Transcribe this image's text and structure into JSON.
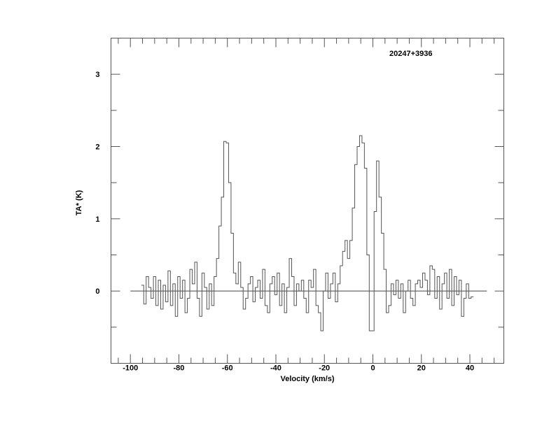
{
  "chart_data": {
    "type": "line",
    "style": "histogram-step",
    "title": "20247+3936",
    "xlabel": "Velocity (km/s)",
    "ylabel": "TA* (K)",
    "xlim": [
      -108,
      54
    ],
    "ylim": [
      -1.0,
      3.5
    ],
    "xticks": [
      -100,
      -80,
      -60,
      -40,
      -20,
      0,
      20,
      40
    ],
    "xtick_labels": [
      "-100",
      "-80",
      "-60",
      "-40",
      "-20",
      "0",
      "20",
      "40"
    ],
    "yticks": [
      0,
      1,
      2,
      3
    ],
    "ytick_labels": [
      "0",
      "1",
      "2",
      "3"
    ],
    "x_minor_step": 5,
    "y_minor_step": 0.5,
    "grid": false,
    "baseline": {
      "y": 0,
      "x_range": [
        -100,
        47
      ]
    },
    "line_color": "#555555",
    "series": [
      {
        "x": [
          -95,
          -94,
          -93,
          -92,
          -91,
          -90,
          -89,
          -88,
          -87,
          -86,
          -85,
          -84,
          -83,
          -82,
          -81,
          -80,
          -79,
          -78,
          -77,
          -76,
          -75,
          -74,
          -73,
          -72,
          -71,
          -70,
          -69,
          -68,
          -67,
          -66,
          -65,
          -64,
          -63,
          -62,
          -61,
          -60,
          -59,
          -58,
          -57,
          -56,
          -55,
          -54,
          -53,
          -52,
          -51,
          -50,
          -49,
          -48,
          -47,
          -46,
          -45,
          -44,
          -43,
          -42,
          -41,
          -40,
          -39,
          -38,
          -37,
          -36,
          -35,
          -34,
          -33,
          -32,
          -31,
          -30,
          -29,
          -28,
          -27,
          -26,
          -25,
          -24,
          -23,
          -22,
          -21,
          -20,
          -19,
          -18,
          -17,
          -16,
          -15,
          -14,
          -13,
          -12,
          -11,
          -10,
          -9,
          -8,
          -7,
          -6,
          -5,
          -4,
          -3,
          -2,
          -1,
          0,
          1,
          2,
          3,
          4,
          5,
          6,
          7,
          8,
          9,
          10,
          11,
          12,
          13,
          14,
          15,
          16,
          17,
          18,
          19,
          20,
          21,
          22,
          23,
          24,
          25,
          26,
          27,
          28,
          29,
          30,
          31,
          32,
          33,
          34,
          35,
          36,
          37,
          38,
          39,
          40,
          41
        ],
        "y": [
          0.08,
          -0.18,
          0.2,
          0.05,
          -0.1,
          0.2,
          -0.2,
          0.15,
          -0.25,
          0.08,
          -0.15,
          0.28,
          -0.2,
          0.1,
          -0.35,
          0.2,
          -0.1,
          0.15,
          -0.3,
          -0.1,
          0.3,
          0.1,
          0.4,
          -0.1,
          -0.35,
          0.25,
          0.05,
          -0.25,
          0.1,
          -0.2,
          0.2,
          0.45,
          0.9,
          1.3,
          2.07,
          2.05,
          1.5,
          0.8,
          0.25,
          0.1,
          0.4,
          0.05,
          -0.25,
          -0.1,
          0.1,
          0.2,
          -0.15,
          0.05,
          0.15,
          -0.1,
          0.3,
          -0.2,
          -0.3,
          0.1,
          0.2,
          -0.05,
          0.25,
          -0.2,
          0.1,
          -0.3,
          0.05,
          0.45,
          0.2,
          -0.2,
          0.1,
          0.0,
          0.15,
          -0.1,
          -0.3,
          0.15,
          0.05,
          0.3,
          -0.2,
          -0.3,
          -0.55,
          0.0,
          0.25,
          -0.1,
          0.1,
          0.25,
          -0.15,
          0.1,
          0.35,
          0.55,
          0.7,
          0.45,
          0.7,
          1.15,
          1.75,
          2.0,
          2.15,
          2.05,
          1.7,
          0.5,
          -0.55,
          -0.55,
          1.1,
          1.8,
          1.3,
          0.8,
          0.3,
          -0.3,
          -0.2,
          0.1,
          -0.05,
          0.15,
          -0.1,
          0.1,
          -0.3,
          0.0,
          0.15,
          -0.1,
          -0.2,
          0.1,
          0.15,
          0.05,
          0.25,
          0.15,
          -0.05,
          0.35,
          0.3,
          -0.1,
          0.2,
          -0.25,
          0.1,
          0.25,
          -0.1,
          0.3,
          -0.2,
          0.2,
          -0.05,
          0.15,
          -0.35,
          -0.1,
          0.1,
          -0.1,
          -0.08
        ]
      }
    ]
  }
}
